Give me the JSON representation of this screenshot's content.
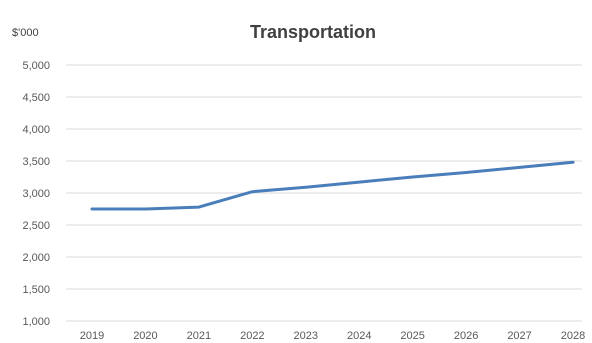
{
  "chart_data": {
    "type": "line",
    "title": "Transportation",
    "y_unit_label": "$'000",
    "xlabel": "",
    "ylabel": "",
    "x": [
      "2019",
      "2020",
      "2021",
      "2022",
      "2023",
      "2024",
      "2025",
      "2026",
      "2027",
      "2028"
    ],
    "series": [
      {
        "values": [
          2750,
          2750,
          2780,
          3020,
          3090,
          3170,
          3250,
          3320,
          3400,
          3480
        ]
      }
    ],
    "ylim": [
      1000,
      5000
    ],
    "yticks": [
      1000,
      1500,
      2000,
      2500,
      3000,
      3500,
      4000,
      4500,
      5000
    ],
    "ytick_labels": [
      "1,000",
      "1,500",
      "2,000",
      "2,500",
      "3,000",
      "3,500",
      "4,000",
      "4,500",
      "5,000"
    ],
    "grid": true,
    "legend": "none",
    "colors": {
      "line": "#4a7ebb",
      "grid": "#d9d9d9",
      "text": "#595959"
    }
  }
}
